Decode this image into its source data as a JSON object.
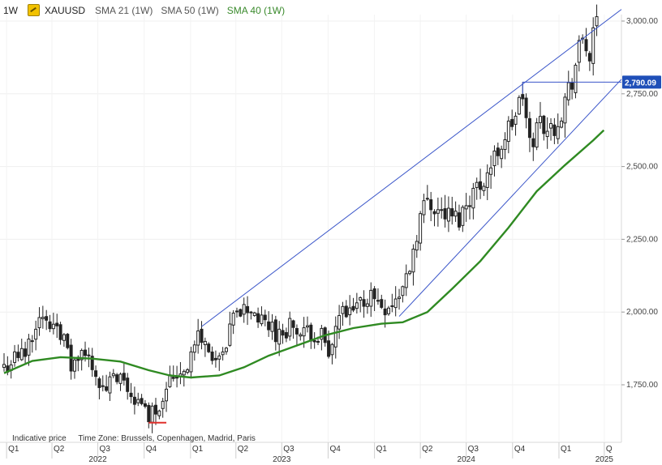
{
  "header": {
    "timeframe": "1W",
    "symbol": "XAUUSD",
    "sma21": "SMA 21 (1W)",
    "sma50": "SMA 50 (1W)",
    "sma40": "SMA 40 (1W)",
    "sma40_color": "#3a8a2c"
  },
  "footer": {
    "price_note": "Indicative price",
    "timezone": "Time Zone: Brussels, Copenhagen, Madrid, Paris"
  },
  "colors": {
    "candle": "#222222",
    "sma40": "#2f8a22",
    "trendline": "#3a55c9",
    "low_marker": "#e0302c",
    "last_price_box": "#1f4fb8"
  },
  "chart_data": {
    "type": "candlestick",
    "title": "",
    "xlabel": "",
    "ylabel": "",
    "ylim": [
      1660,
      3050
    ],
    "y_ticks": [
      "3,000.00",
      "2,750.00",
      "2,500.00",
      "2,250.00",
      "2,000.00",
      "1,750.00"
    ],
    "y_tick_values": [
      3000,
      2750,
      2500,
      2250,
      2000,
      1750
    ],
    "x_quarters": [
      {
        "label": "Q1",
        "date": "2022-01-01"
      },
      {
        "label": "Q2",
        "date": "2022-04-01"
      },
      {
        "label": "Q3",
        "date": "2022-07-01"
      },
      {
        "label": "Q4",
        "date": "2022-10-01"
      },
      {
        "label": "Q1",
        "date": "2023-01-01"
      },
      {
        "label": "Q2",
        "date": "2023-04-01"
      },
      {
        "label": "Q3",
        "date": "2023-07-01"
      },
      {
        "label": "Q4",
        "date": "2023-10-01"
      },
      {
        "label": "Q1",
        "date": "2024-01-01"
      },
      {
        "label": "Q2",
        "date": "2024-04-01"
      },
      {
        "label": "Q3",
        "date": "2024-07-01"
      },
      {
        "label": "Q4",
        "date": "2024-10-01"
      },
      {
        "label": "Q1",
        "date": "2025-01-01"
      },
      {
        "label": "Q",
        "date": "2025-04-01"
      }
    ],
    "x_years": [
      {
        "label": "2022",
        "date": "2022-07-01"
      },
      {
        "label": "2023",
        "date": "2023-07-01"
      },
      {
        "label": "2024",
        "date": "2024-07-01"
      },
      {
        "label": "2025",
        "date": "2025-04-01"
      }
    ],
    "last_price": 2790.09,
    "last_price_label": "2,790.09",
    "close_path": [
      [
        "2021-12-27",
        1810
      ],
      [
        "2022-01-17",
        1840
      ],
      [
        "2022-02-07",
        1860
      ],
      [
        "2022-02-28",
        1970
      ],
      [
        "2022-03-07",
        1990
      ],
      [
        "2022-03-21",
        1950
      ],
      [
        "2022-04-11",
        1975
      ],
      [
        "2022-04-25",
        1900
      ],
      [
        "2022-05-09",
        1810
      ],
      [
        "2022-05-30",
        1850
      ],
      [
        "2022-06-20",
        1830
      ],
      [
        "2022-07-11",
        1720
      ],
      [
        "2022-07-25",
        1760
      ],
      [
        "2022-08-15",
        1760
      ],
      [
        "2022-09-05",
        1720
      ],
      [
        "2022-09-26",
        1670
      ],
      [
        "2022-10-10",
        1650
      ],
      [
        "2022-10-31",
        1680
      ],
      [
        "2022-11-14",
        1760
      ],
      [
        "2022-12-05",
        1790
      ],
      [
        "2022-12-26",
        1820
      ],
      [
        "2023-01-16",
        1920
      ],
      [
        "2023-02-06",
        1870
      ],
      [
        "2023-02-27",
        1820
      ],
      [
        "2023-03-13",
        1870
      ],
      [
        "2023-03-27",
        1980
      ],
      [
        "2023-04-10",
        2005
      ],
      [
        "2023-05-01",
        2010
      ],
      [
        "2023-05-22",
        1960
      ],
      [
        "2023-06-12",
        1950
      ],
      [
        "2023-06-26",
        1915
      ],
      [
        "2023-07-17",
        1960
      ],
      [
        "2023-08-07",
        1915
      ],
      [
        "2023-08-28",
        1930
      ],
      [
        "2023-09-18",
        1920
      ],
      [
        "2023-10-02",
        1830
      ],
      [
        "2023-10-23",
        1990
      ],
      [
        "2023-11-13",
        1985
      ],
      [
        "2023-12-04",
        2030
      ],
      [
        "2023-12-25",
        2060
      ],
      [
        "2024-01-15",
        2025
      ],
      [
        "2024-02-05",
        2025
      ],
      [
        "2024-02-26",
        2080
      ],
      [
        "2024-03-11",
        2160
      ],
      [
        "2024-04-01",
        2330
      ],
      [
        "2024-04-15",
        2390
      ],
      [
        "2024-05-06",
        2350
      ],
      [
        "2024-05-27",
        2330
      ],
      [
        "2024-06-17",
        2320
      ],
      [
        "2024-07-08",
        2400
      ],
      [
        "2024-07-29",
        2440
      ],
      [
        "2024-08-19",
        2500
      ],
      [
        "2024-09-09",
        2580
      ],
      [
        "2024-09-30",
        2650
      ],
      [
        "2024-10-21",
        2740
      ],
      [
        "2024-11-04",
        2570
      ],
      [
        "2024-11-25",
        2660
      ],
      [
        "2024-12-16",
        2620
      ],
      [
        "2025-01-06",
        2690
      ],
      [
        "2025-01-27",
        2800
      ],
      [
        "2025-02-17",
        2940
      ],
      [
        "2025-03-03",
        2880
      ],
      [
        "2025-03-17",
        2985
      ]
    ],
    "sma40": [
      [
        "2021-12-27",
        1790
      ],
      [
        "2022-02-21",
        1832
      ],
      [
        "2022-04-18",
        1845
      ],
      [
        "2022-06-20",
        1840
      ],
      [
        "2022-08-15",
        1830
      ],
      [
        "2022-10-10",
        1800
      ],
      [
        "2022-11-21",
        1782
      ],
      [
        "2023-01-02",
        1775
      ],
      [
        "2023-02-27",
        1782
      ],
      [
        "2023-04-17",
        1810
      ],
      [
        "2023-06-05",
        1850
      ],
      [
        "2023-07-31",
        1885
      ],
      [
        "2023-09-25",
        1920
      ],
      [
        "2023-11-20",
        1945
      ],
      [
        "2024-01-15",
        1960
      ],
      [
        "2024-02-26",
        1965
      ],
      [
        "2024-04-15",
        2000
      ],
      [
        "2024-06-03",
        2080
      ],
      [
        "2024-07-29",
        2175
      ],
      [
        "2024-09-23",
        2290
      ],
      [
        "2024-11-18",
        2415
      ],
      [
        "2025-01-13",
        2505
      ],
      [
        "2025-03-10",
        2590
      ],
      [
        "2025-03-31",
        2625
      ]
    ],
    "annotations": [
      {
        "type": "trendline",
        "from": [
          "2023-01-23",
          1950
        ],
        "to": [
          "2025-05-05",
          3040
        ]
      },
      {
        "type": "trendline",
        "from": [
          "2024-02-19",
          1985
        ],
        "to": [
          "2025-05-05",
          2800
        ]
      },
      {
        "type": "hline",
        "from_date": "2024-10-21",
        "to_date": "2025-05-05",
        "value": 2790.09
      },
      {
        "type": "low-marker",
        "from_date": "2022-10-10",
        "to_date": "2022-11-14",
        "value": 1620
      }
    ]
  }
}
